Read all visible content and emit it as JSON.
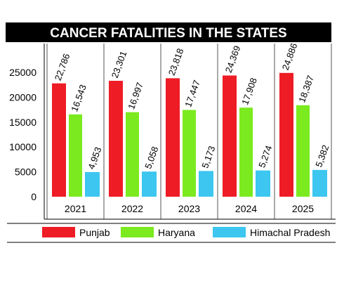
{
  "chart_data": {
    "type": "bar",
    "title": "CANCER FATALITIES IN THE STATES",
    "categories": [
      "2021",
      "2022",
      "2023",
      "2024",
      "2025"
    ],
    "series": [
      {
        "name": "Punjab",
        "color": "#ee1c25",
        "values": [
          22786,
          23301,
          23818,
          24369,
          24886
        ],
        "labels": [
          "22,786",
          "23,301",
          "23,818",
          "24,369",
          "24,886"
        ]
      },
      {
        "name": "Haryana",
        "color": "#7bea1f",
        "values": [
          16543,
          16997,
          17447,
          17908,
          18387
        ],
        "labels": [
          "16,543",
          "16,997",
          "17,447",
          "17,908",
          "18,387"
        ]
      },
      {
        "name": "Himachal Pradesh",
        "color": "#3cc6f0",
        "values": [
          4953,
          5058,
          5173,
          5274,
          5382
        ],
        "labels": [
          "4,953",
          "5,058",
          "5,173",
          "5,274",
          "5,382"
        ]
      }
    ],
    "yticks": [
      "25000",
      "20000",
      "15000",
      "10000",
      "5000",
      "0"
    ],
    "ylim": [
      0,
      30000
    ],
    "legend_position": "bottom",
    "title_color": "#000000"
  }
}
